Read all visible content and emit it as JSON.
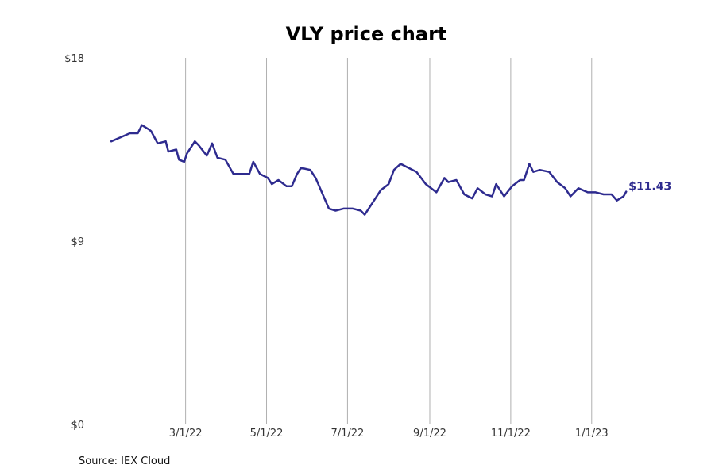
{
  "chart_data": {
    "type": "line",
    "title": "VLY price chart",
    "xlabel": "",
    "ylabel": "",
    "x_ticks": [
      "3/1/22",
      "5/1/22",
      "7/1/22",
      "9/1/22",
      "11/1/22",
      "1/1/23"
    ],
    "y_ticks": [
      "$0",
      "$9",
      "$18"
    ],
    "ylim": [
      0,
      18
    ],
    "xlim": [
      "2021-12-17",
      "2023-02-27"
    ],
    "grid": "vertical",
    "color": "#2e2b8f",
    "end_label": "$11.43",
    "series": [
      {
        "x": [
          "2022-01-04",
          "2022-01-11",
          "2022-01-18",
          "2022-01-24",
          "2022-01-27",
          "2022-02-01",
          "2022-02-03",
          "2022-02-08",
          "2022-02-14",
          "2022-02-16",
          "2022-02-22",
          "2022-02-24",
          "2022-02-28",
          "2022-03-02",
          "2022-03-08",
          "2022-03-11",
          "2022-03-17",
          "2022-03-21",
          "2022-03-25",
          "2022-03-31",
          "2022-04-06",
          "2022-04-12",
          "2022-04-18",
          "2022-04-21",
          "2022-04-26",
          "2022-05-02",
          "2022-05-05",
          "2022-05-10",
          "2022-05-16",
          "2022-05-20",
          "2022-05-24",
          "2022-05-27",
          "2022-06-03",
          "2022-06-07",
          "2022-06-13",
          "2022-06-17",
          "2022-06-22",
          "2022-06-28",
          "2022-07-05",
          "2022-07-11",
          "2022-07-14",
          "2022-07-20",
          "2022-07-26",
          "2022-08-01",
          "2022-08-05",
          "2022-08-10",
          "2022-08-16",
          "2022-08-22",
          "2022-08-29",
          "2022-09-06",
          "2022-09-12",
          "2022-09-15",
          "2022-09-21",
          "2022-09-27",
          "2022-10-03",
          "2022-10-07",
          "2022-10-13",
          "2022-10-18",
          "2022-10-21",
          "2022-10-27",
          "2022-11-02",
          "2022-11-08",
          "2022-11-11",
          "2022-11-15",
          "2022-11-18",
          "2022-11-23",
          "2022-11-30",
          "2022-12-06",
          "2022-12-12",
          "2022-12-16",
          "2022-12-22",
          "2022-12-29",
          "2023-01-04",
          "2023-01-10",
          "2023-01-16",
          "2023-01-20",
          "2023-01-25",
          "2023-01-27"
        ],
        "y": [
          13.9,
          14.1,
          14.3,
          14.3,
          14.7,
          14.5,
          14.4,
          13.8,
          13.9,
          13.4,
          13.5,
          13.0,
          12.9,
          13.3,
          13.9,
          13.7,
          13.2,
          13.8,
          13.1,
          13.0,
          12.3,
          12.3,
          12.3,
          12.9,
          12.3,
          12.1,
          11.8,
          12.0,
          11.7,
          11.7,
          12.3,
          12.6,
          12.5,
          12.1,
          11.2,
          10.6,
          10.5,
          10.6,
          10.6,
          10.5,
          10.3,
          10.9,
          11.5,
          11.8,
          12.5,
          12.8,
          12.6,
          12.4,
          11.8,
          11.4,
          12.1,
          11.9,
          12.0,
          11.3,
          11.1,
          11.6,
          11.3,
          11.2,
          11.8,
          11.2,
          11.7,
          12.0,
          12.0,
          12.8,
          12.4,
          12.5,
          12.4,
          11.9,
          11.6,
          11.2,
          11.6,
          11.4,
          11.4,
          11.3,
          11.3,
          11.0,
          11.2,
          11.43
        ]
      }
    ]
  },
  "source": "Source: IEX Cloud"
}
